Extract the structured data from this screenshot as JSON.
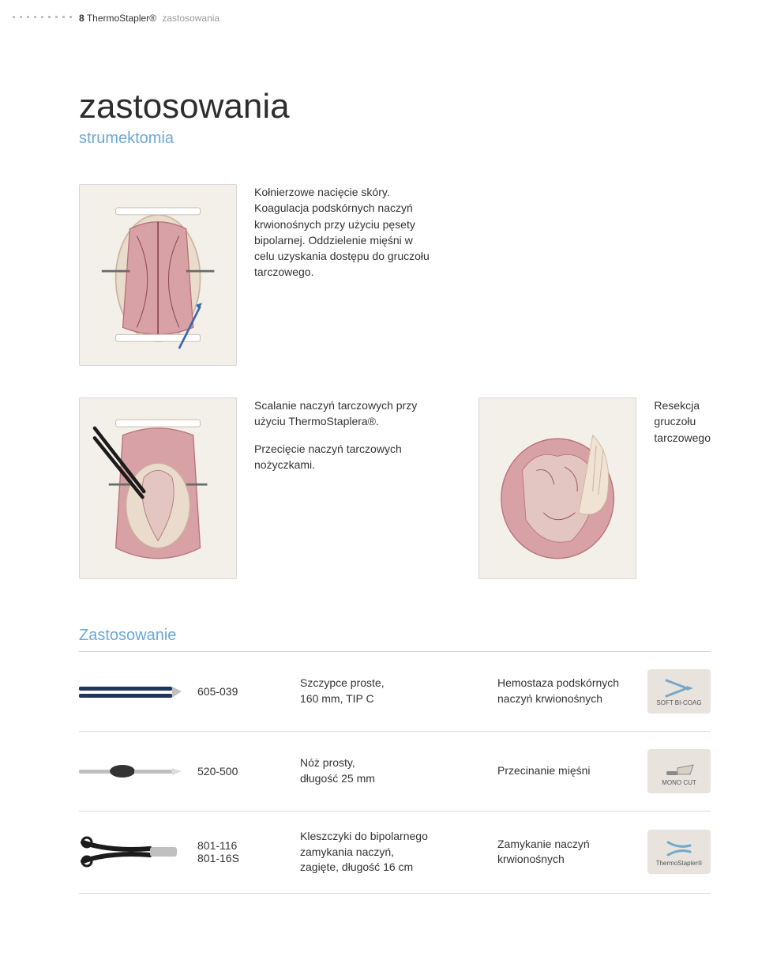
{
  "page": {
    "number": "8",
    "brand": "ThermoStapler®",
    "sectionLabel": "zastosowania"
  },
  "heading": {
    "title": "zastosowania",
    "subtitle": "strumektomia"
  },
  "captions": {
    "incision": "Kołnierzowe nacięcie skóry. Koagulacja podskórnych naczyń krwionośnych przy użyciu pęsety bipolarnej. Oddzielenie mięśni w celu uzyskania dostępu do gruczołu tarczowego.",
    "sealing": "Scalanie naczyń tarczowych przy użyciu ThermoStaplera®.",
    "cutting": "Przecięcie naczyń tarczowych nożyczkami.",
    "resection": "Resekcja gruczołu tarczowego"
  },
  "applications": {
    "heading": "Zastosowanie",
    "rows": [
      {
        "code": "605-039",
        "desc": "Szczypce proste,\n160 mm, TIP C",
        "purpose": "Hemostaza podskórnych naczyń krwionośnych",
        "mode": "SOFT BI-COAG",
        "thumbColor": "#1e3560",
        "modeIcon": "forceps"
      },
      {
        "code": "520-500",
        "desc": "Nóż prosty,\ndługość 25 mm",
        "purpose": "Przecinanie mięśni",
        "mode": "MONO CUT",
        "thumbColor": "#8a8a8a",
        "modeIcon": "blade"
      },
      {
        "code": "801-116\n801-16S",
        "desc": "Kleszczyki do bipolarnego zamykania naczyń,\nzagięte, długość 16 cm",
        "purpose": "Zamykanie naczyń krwionośnych",
        "mode": "ThermoStapler®",
        "thumbColor": "#1b1b1b",
        "modeIcon": "clamp"
      }
    ]
  },
  "palette": {
    "muscle": "#d8a1a5",
    "muscleDark": "#b87279",
    "fascia": "#e9dccc",
    "tool": "#6a6a6a",
    "skin": "#f0e3d3"
  }
}
